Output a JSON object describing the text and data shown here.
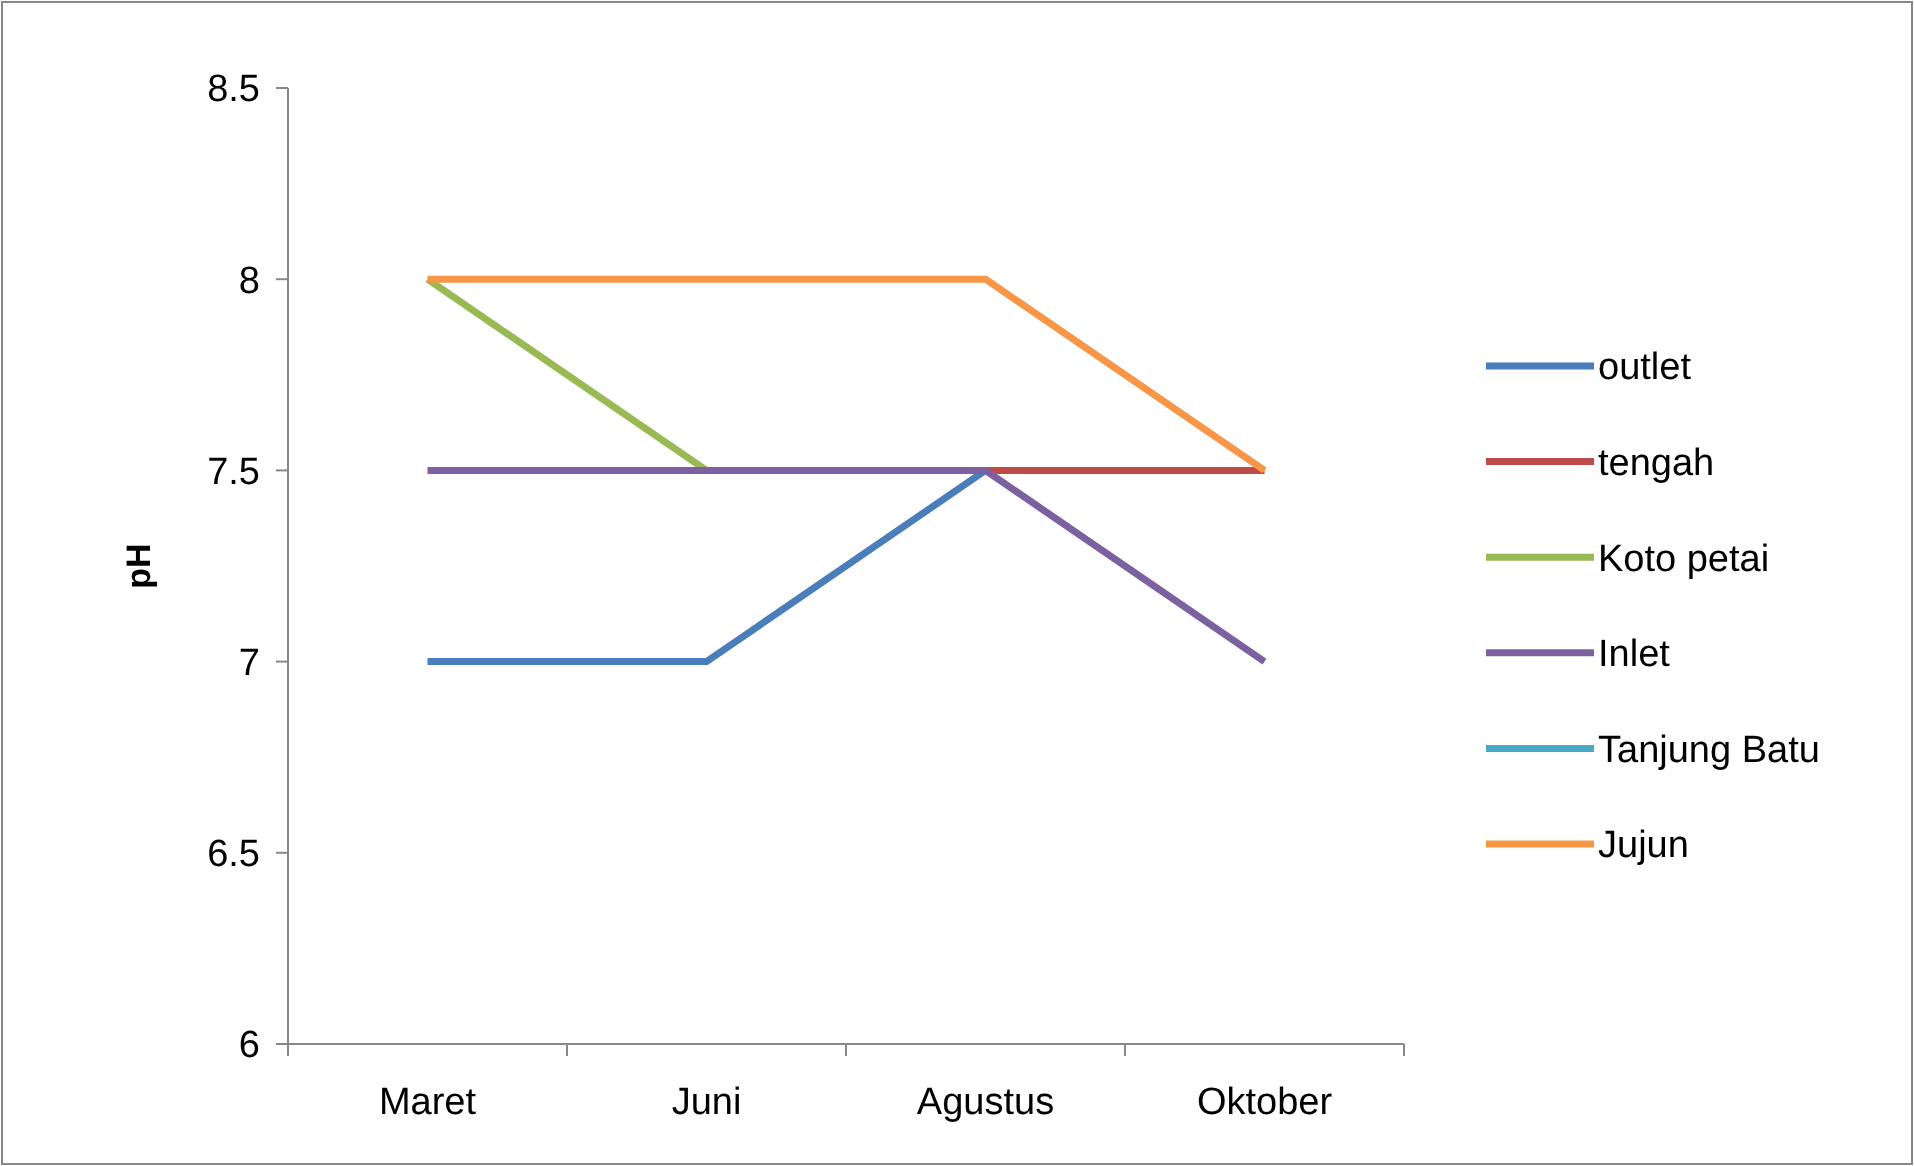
{
  "chart_data": {
    "type": "line",
    "ylabel": "pH",
    "categories": [
      "Maret",
      "Juni",
      "Agustus",
      "Oktober"
    ],
    "ylim": [
      6,
      8.5
    ],
    "yticks": [
      6,
      6.5,
      7,
      7.5,
      8,
      8.5
    ],
    "grid": false,
    "legend": "right",
    "marker": "none",
    "line_style": "solid",
    "series": [
      {
        "name": "outlet",
        "color": "#4a7ebb",
        "values": [
          7,
          7,
          7.5,
          null
        ]
      },
      {
        "name": "tengah",
        "color": "#be4b48",
        "values": [
          null,
          null,
          7.5,
          7.5
        ]
      },
      {
        "name": "Koto petai",
        "color": "#98b954",
        "values": [
          8,
          7.5,
          null,
          null
        ]
      },
      {
        "name": "Inlet",
        "color": "#7d60a0",
        "values": [
          7.5,
          7.5,
          7.5,
          7
        ]
      },
      {
        "name": "Tanjung Batu",
        "color": "#46aac5",
        "values": [
          null,
          null,
          null,
          null
        ]
      },
      {
        "name": "Jujun",
        "color": "#f79646",
        "values": [
          8,
          8,
          8,
          7.5
        ]
      }
    ]
  }
}
